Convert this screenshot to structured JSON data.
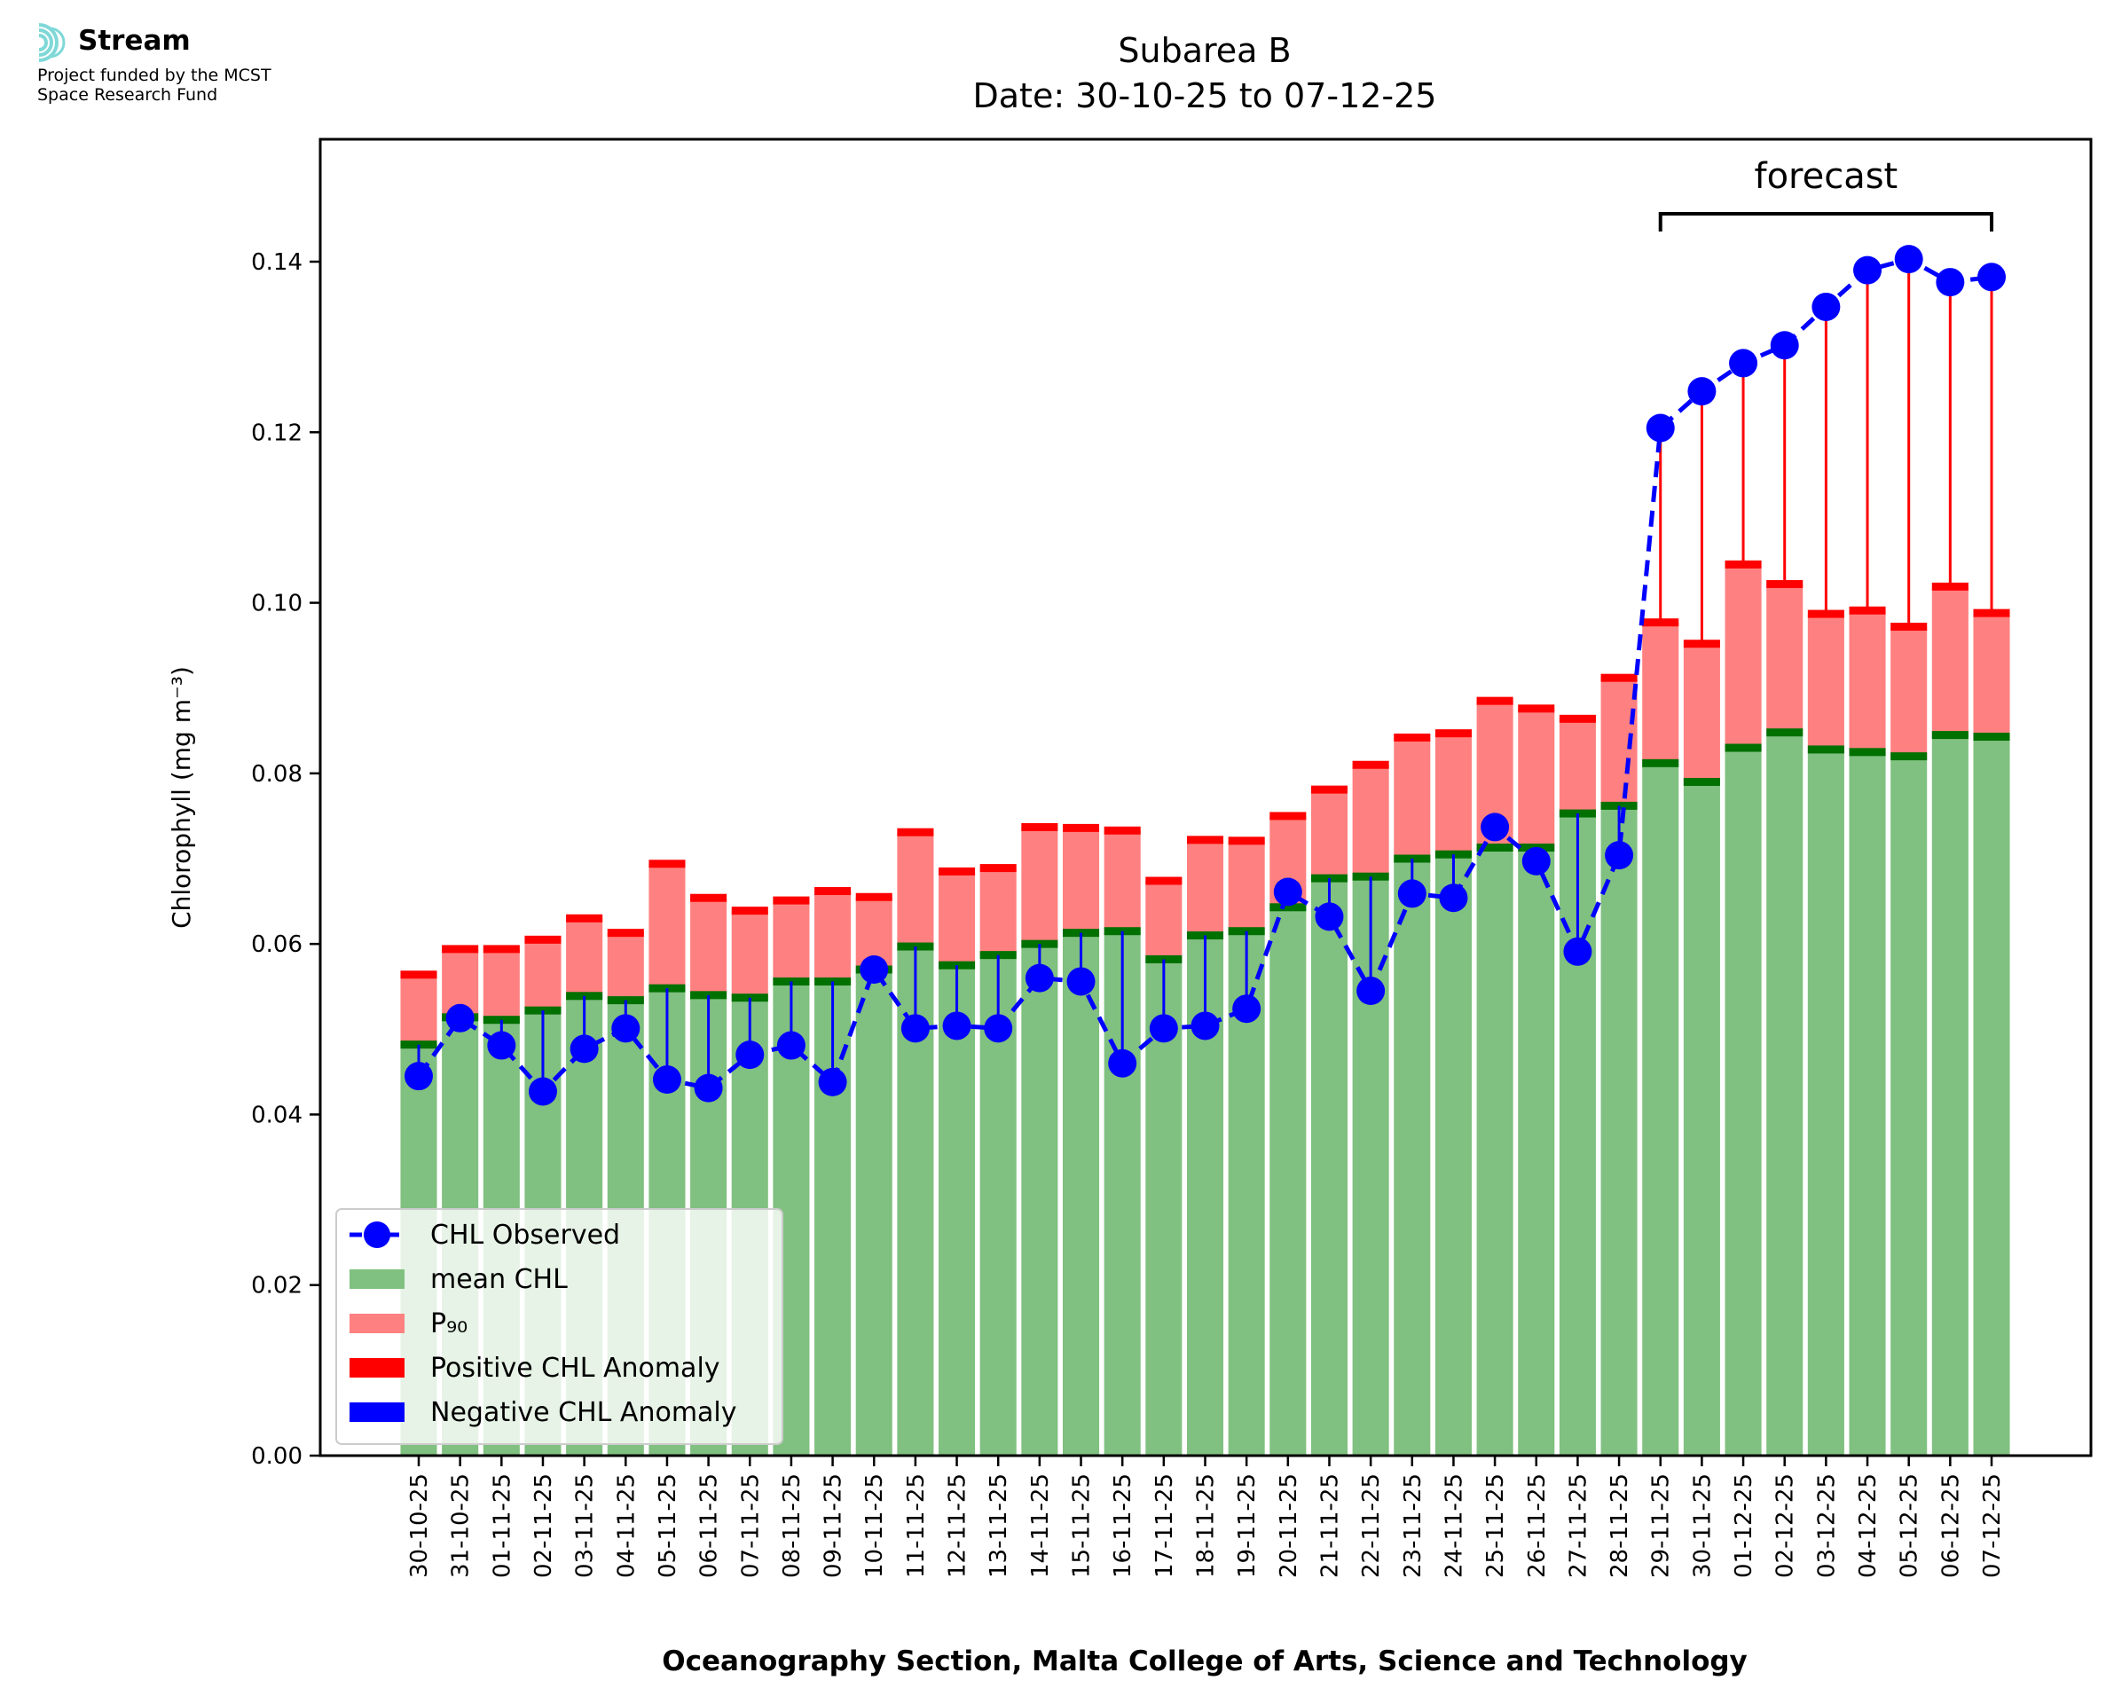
{
  "logo": {
    "brand": "Stream",
    "line1": "Project funded by the MCST",
    "line2": "Space Research Fund",
    "icon": "stream-waves-icon"
  },
  "chart_data": {
    "type": "bar",
    "title": "Subarea B",
    "subtitle": "Date: 30-10-25 to 07-12-25",
    "xlabel": "Oceanography Section, Malta College of Arts, Science and Technology",
    "ylabel": "Chlorophyll (mg m⁻³)",
    "ylim": [
      0,
      0.1545
    ],
    "yticks": [
      "0.00",
      "0.02",
      "0.04",
      "0.06",
      "0.08",
      "0.10",
      "0.12",
      "0.14"
    ],
    "categories": [
      "30-10-25",
      "31-10-25",
      "01-11-25",
      "02-11-25",
      "03-11-25",
      "04-11-25",
      "05-11-25",
      "06-11-25",
      "07-11-25",
      "08-11-25",
      "09-11-25",
      "10-11-25",
      "11-11-25",
      "12-11-25",
      "13-11-25",
      "14-11-25",
      "15-11-25",
      "16-11-25",
      "17-11-25",
      "18-11-25",
      "19-11-25",
      "20-11-25",
      "21-11-25",
      "22-11-25",
      "23-11-25",
      "24-11-25",
      "25-11-25",
      "26-11-25",
      "27-11-25",
      "28-11-25",
      "29-11-25",
      "30-11-25",
      "01-12-25",
      "02-12-25",
      "03-12-25",
      "04-12-25",
      "05-12-25",
      "06-12-25",
      "07-12-25"
    ],
    "series": [
      {
        "name": "mean CHL",
        "color": "#80c080",
        "values": [
          0.0482,
          0.0514,
          0.0511,
          0.0522,
          0.0539,
          0.0534,
          0.0548,
          0.054,
          0.0537,
          0.0556,
          0.0556,
          0.057,
          0.0597,
          0.0575,
          0.0587,
          0.06,
          0.0613,
          0.0615,
          0.0582,
          0.061,
          0.0615,
          0.0643,
          0.0677,
          0.0679,
          0.07,
          0.0705,
          0.0713,
          0.0713,
          0.0753,
          0.0762,
          0.0812,
          0.079,
          0.083,
          0.0848,
          0.0828,
          0.0825,
          0.082,
          0.0845,
          0.0843
        ]
      },
      {
        "name": "P₉₀",
        "color": "#ff8080",
        "values": [
          0.0564,
          0.0594,
          0.0594,
          0.0605,
          0.063,
          0.0613,
          0.0694,
          0.0654,
          0.0639,
          0.0651,
          0.0662,
          0.0655,
          0.0731,
          0.0685,
          0.0689,
          0.0737,
          0.0736,
          0.0733,
          0.0674,
          0.0722,
          0.0721,
          0.075,
          0.0781,
          0.081,
          0.0842,
          0.0847,
          0.0885,
          0.0876,
          0.0864,
          0.0912,
          0.0977,
          0.0952,
          0.1045,
          0.1022,
          0.0987,
          0.0991,
          0.0972,
          0.1019,
          0.0988
        ]
      },
      {
        "name": "CHL Observed",
        "color": "#0000ff",
        "values": [
          0.0445,
          0.0513,
          0.0481,
          0.0427,
          0.0477,
          0.0501,
          0.0441,
          0.0431,
          0.047,
          0.0481,
          0.0438,
          0.057,
          0.0501,
          0.0504,
          0.0501,
          0.056,
          0.0556,
          0.046,
          0.0501,
          0.0504,
          0.0524,
          0.0661,
          0.0632,
          0.0545,
          0.0659,
          0.0654,
          0.0737,
          0.0697,
          0.0591,
          0.0704,
          0.1205,
          0.1248,
          0.1281,
          0.1302,
          0.1347,
          0.139,
          0.1403,
          0.1376,
          0.1382
        ]
      }
    ],
    "annotation": "forecast",
    "forecast_range": [
      "29-11-25",
      "07-12-25"
    ],
    "legend_position": "lower left",
    "legend": [
      {
        "label": "CHL Observed",
        "kind": "line-marker",
        "color": "#0000ff"
      },
      {
        "label": "mean CHL",
        "kind": "patch",
        "color": "#80c080"
      },
      {
        "label": "P₉₀",
        "kind": "patch",
        "color": "#ff8080"
      },
      {
        "label": "Positive CHL Anomaly",
        "kind": "patch",
        "color": "#ff0000"
      },
      {
        "label": "Negative CHL Anomaly",
        "kind": "patch",
        "color": "#0000ff"
      }
    ],
    "grid": false
  }
}
